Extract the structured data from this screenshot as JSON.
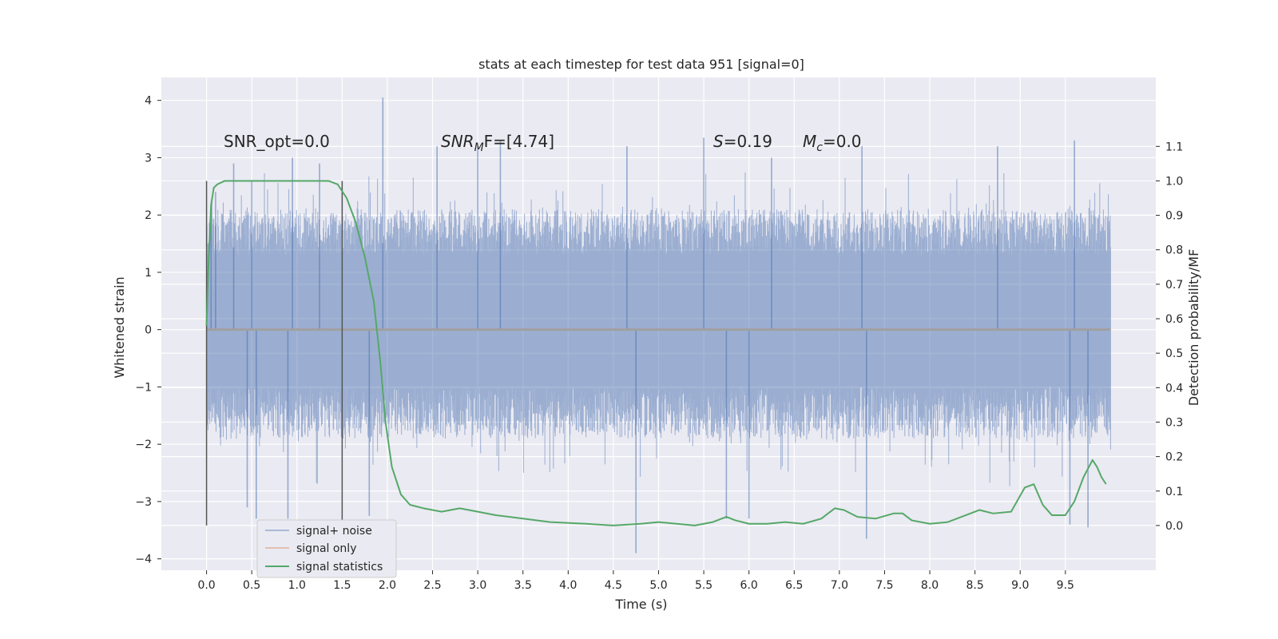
{
  "chart_data": {
    "type": "line",
    "title": "stats at each timestep for test data 951 [signal=0]",
    "xlabel": "Time (s)",
    "ylabel": "Whitened strain",
    "y2label": "Detection probability/MF",
    "xlim": [
      -0.5,
      10.5
    ],
    "ylim": [
      -4.2,
      4.4
    ],
    "y2lim": [
      -0.13,
      1.3
    ],
    "x_ticks": [
      "0.0",
      "0.5",
      "1.0",
      "1.5",
      "2.0",
      "2.5",
      "3.0",
      "3.5",
      "4.0",
      "4.5",
      "5.0",
      "5.5",
      "6.0",
      "6.5",
      "7.0",
      "7.5",
      "8.0",
      "8.5",
      "9.0",
      "9.5"
    ],
    "y_ticks": [
      "4",
      "3",
      "2",
      "1",
      "0",
      "−1",
      "−2",
      "−3",
      "−4"
    ],
    "y2_ticks": [
      "1.1",
      "1.0",
      "0.9",
      "0.8",
      "0.7",
      "0.6",
      "0.5",
      "0.4",
      "0.3",
      "0.2",
      "0.1",
      "0.0"
    ],
    "grid": true,
    "legend_position": "lower-left",
    "colors": {
      "signal_noise": "#4c72b0",
      "signal_only": "#dd8452",
      "signal_statistics": "#55a868",
      "markers": "#555555",
      "plot_bg": "#eaeaf2",
      "grid": "#ffffff"
    },
    "annotations": {
      "snr_opt": "SNR_opt=0.0",
      "snr_mf_name": "SNR",
      "snr_mf_sub": "M",
      "snr_mf_rest": "F=[4.74]",
      "s_name": "S",
      "s_rest": "=0.19",
      "mc_name": "M",
      "mc_sub": "c",
      "mc_rest": "=0.0"
    },
    "vertical_markers": [
      0.0,
      1.5
    ],
    "series": [
      {
        "name": "signal+ noise",
        "axis": "left",
        "description_of_shape": "dense whitened noise, roughly uniform between -1.8 and 2.0 with spikes",
        "x_range": [
          0.0,
          10.0
        ],
        "spike_peaks": [
          {
            "x": 0.05,
            "y": 2.1
          },
          {
            "x": 0.1,
            "y": 2.4
          },
          {
            "x": 0.3,
            "y": 2.9
          },
          {
            "x": 0.5,
            "y": 2.6
          },
          {
            "x": 0.95,
            "y": 3.0
          },
          {
            "x": 1.25,
            "y": 2.9
          },
          {
            "x": 1.95,
            "y": 4.05
          },
          {
            "x": 2.55,
            "y": 3.2
          },
          {
            "x": 3.0,
            "y": 3.2
          },
          {
            "x": 3.25,
            "y": 3.3
          },
          {
            "x": 4.65,
            "y": 3.2
          },
          {
            "x": 5.5,
            "y": 3.35
          },
          {
            "x": 6.25,
            "y": 3.0
          },
          {
            "x": 7.25,
            "y": 3.2
          },
          {
            "x": 8.75,
            "y": 3.2
          },
          {
            "x": 9.6,
            "y": 3.3
          }
        ],
        "trough_peaks": [
          {
            "x": 0.45,
            "y": -3.1
          },
          {
            "x": 0.55,
            "y": -3.3
          },
          {
            "x": 0.9,
            "y": -3.3
          },
          {
            "x": 1.8,
            "y": -3.25
          },
          {
            "x": 4.75,
            "y": -3.9
          },
          {
            "x": 5.75,
            "y": -3.3
          },
          {
            "x": 6.0,
            "y": -3.3
          },
          {
            "x": 7.3,
            "y": -3.65
          },
          {
            "x": 9.55,
            "y": -3.4
          },
          {
            "x": 9.75,
            "y": -3.45
          }
        ]
      },
      {
        "name": "signal only",
        "axis": "left",
        "x": [
          0.0,
          10.0
        ],
        "y": [
          0.0,
          0.0
        ]
      },
      {
        "name": "signal statistics",
        "axis": "right",
        "x": [
          0.0,
          0.02,
          0.05,
          0.08,
          0.12,
          0.2,
          0.3,
          0.5,
          0.8,
          1.0,
          1.2,
          1.35,
          1.45,
          1.55,
          1.65,
          1.75,
          1.85,
          1.92,
          1.98,
          2.05,
          2.15,
          2.25,
          2.4,
          2.6,
          2.8,
          3.0,
          3.2,
          3.5,
          3.8,
          4.2,
          4.5,
          4.8,
          5.0,
          5.2,
          5.4,
          5.6,
          5.75,
          5.85,
          6.0,
          6.2,
          6.4,
          6.6,
          6.8,
          6.95,
          7.05,
          7.2,
          7.4,
          7.6,
          7.7,
          7.8,
          8.0,
          8.2,
          8.4,
          8.55,
          8.7,
          8.9,
          9.05,
          9.15,
          9.25,
          9.35,
          9.5,
          9.6,
          9.7,
          9.8,
          9.85,
          9.9,
          9.95
        ],
        "y": [
          0.58,
          0.75,
          0.93,
          0.98,
          0.99,
          1.0,
          1.0,
          1.0,
          1.0,
          1.0,
          1.0,
          1.0,
          0.99,
          0.95,
          0.88,
          0.78,
          0.65,
          0.48,
          0.3,
          0.17,
          0.09,
          0.06,
          0.05,
          0.04,
          0.05,
          0.04,
          0.03,
          0.02,
          0.01,
          0.005,
          0.0,
          0.005,
          0.01,
          0.005,
          0.0,
          0.01,
          0.025,
          0.015,
          0.005,
          0.005,
          0.01,
          0.005,
          0.02,
          0.05,
          0.045,
          0.025,
          0.02,
          0.035,
          0.035,
          0.015,
          0.005,
          0.01,
          0.03,
          0.045,
          0.035,
          0.04,
          0.11,
          0.12,
          0.06,
          0.03,
          0.03,
          0.07,
          0.14,
          0.19,
          0.17,
          0.14,
          0.12
        ]
      }
    ]
  }
}
